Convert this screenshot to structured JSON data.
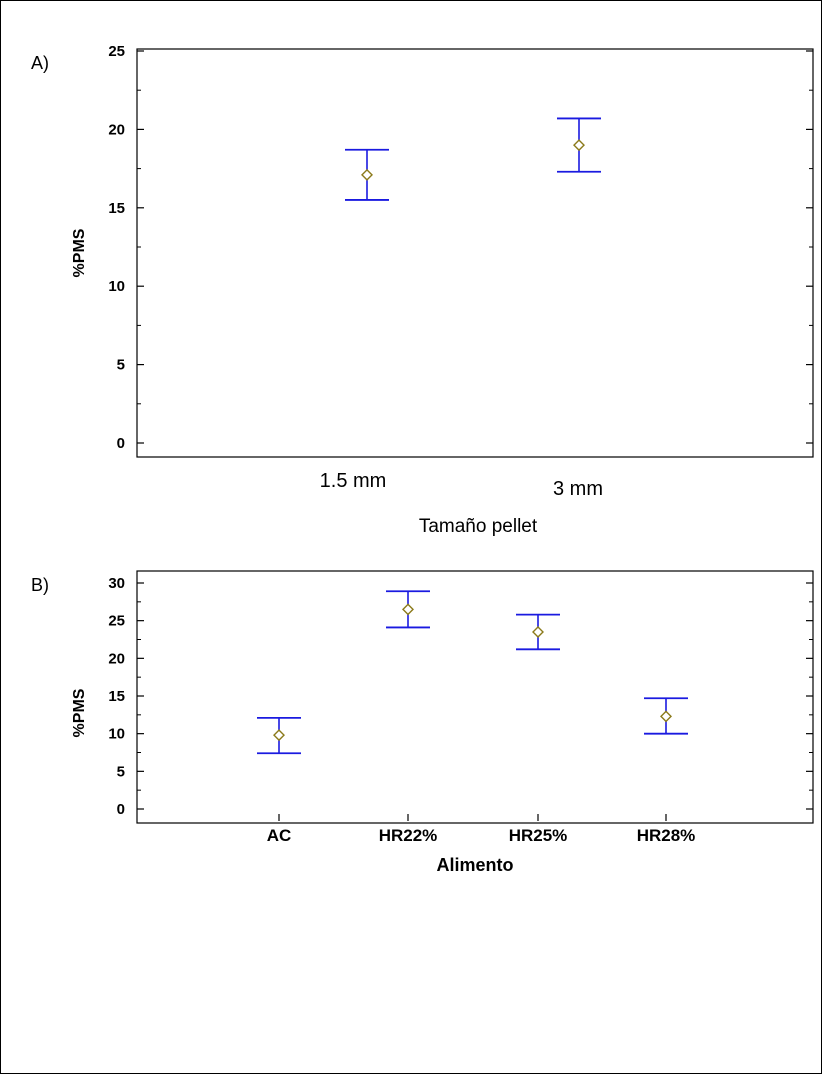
{
  "chart_data": [
    {
      "type": "scatter",
      "panel_label": "A)",
      "title": "",
      "xlabel": "Tamaño pellet",
      "ylabel": "%PMS",
      "ylim": [
        0,
        25
      ],
      "yticks": [
        0,
        5,
        10,
        15,
        20,
        25
      ],
      "categories": [
        "1.5 mm",
        "3 mm"
      ],
      "series": [
        {
          "values": [
            17.1,
            19.0
          ],
          "lower": [
            15.5,
            17.3
          ],
          "upper": [
            18.7,
            20.7
          ]
        }
      ],
      "grid": false,
      "colors": {
        "error_bar": "#1a1ae0",
        "marker": "#8b7a1a"
      }
    },
    {
      "type": "scatter",
      "panel_label": "B)",
      "title": "",
      "xlabel": "Alimento",
      "ylabel": "%PMS",
      "ylim": [
        0,
        30
      ],
      "yticks": [
        0,
        5,
        10,
        15,
        20,
        25,
        30
      ],
      "categories": [
        "AC",
        "HR22%",
        "HR25%",
        "HR28%"
      ],
      "series": [
        {
          "values": [
            9.8,
            26.5,
            23.5,
            12.3
          ],
          "lower": [
            7.4,
            24.1,
            21.2,
            10.0
          ],
          "upper": [
            12.1,
            28.9,
            25.8,
            14.7
          ]
        }
      ],
      "grid": false,
      "colors": {
        "error_bar": "#1a1ae0",
        "marker": "#8b7a1a"
      }
    }
  ]
}
